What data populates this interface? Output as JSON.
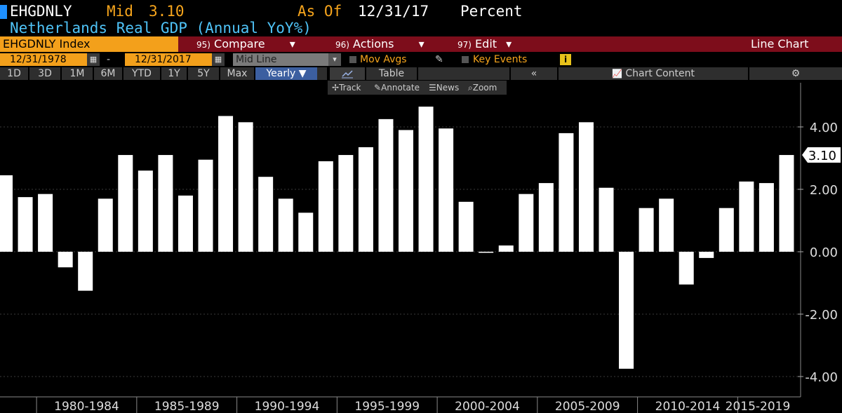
{
  "header": {
    "ticker": "EHGDNLY",
    "mid_label": "Mid",
    "mid_value": "3.10",
    "asof_label": "As Of",
    "asof_value": "12/31/17",
    "unit": "Percent",
    "description": "Netherlands Real GDP (Annual YoY%)"
  },
  "menu": {
    "index": "EHGDNLY Index",
    "compare_num": "95)",
    "compare": "Compare",
    "actions_num": "96)",
    "actions": "Actions",
    "edit_num": "97)",
    "edit": "Edit",
    "chart_type": "Line Chart"
  },
  "dates": {
    "start": "12/31/1978",
    "end": "12/31/2017",
    "mode": "Mid Line",
    "mov_avgs": "Mov Avgs",
    "key_events": "Key Events"
  },
  "periods": [
    "1D",
    "3D",
    "1M",
    "6M",
    "YTD",
    "1Y",
    "5Y",
    "Max"
  ],
  "frequency": "Yearly",
  "view": {
    "table": "Table",
    "chart_content": "Chart Content"
  },
  "tools": {
    "track": "Track",
    "annotate": "Annotate",
    "news": "News",
    "zoom": "Zoom"
  },
  "colors": {
    "bars": "#ffffff",
    "accent": "#f3a01b",
    "menubar": "#7d0d1b",
    "title": "#4fc3f7"
  },
  "chart_data": {
    "type": "bar",
    "title": "Netherlands Real GDP (Annual YoY%)",
    "x": [
      1978,
      1979,
      1980,
      1981,
      1982,
      1983,
      1984,
      1985,
      1986,
      1987,
      1988,
      1989,
      1990,
      1991,
      1992,
      1993,
      1994,
      1995,
      1996,
      1997,
      1998,
      1999,
      2000,
      2001,
      2002,
      2003,
      2004,
      2005,
      2006,
      2007,
      2008,
      2009,
      2010,
      2011,
      2012,
      2013,
      2014,
      2015,
      2016,
      2017
    ],
    "values": [
      2.45,
      1.75,
      1.85,
      -0.5,
      -1.25,
      1.7,
      3.1,
      2.6,
      3.1,
      1.8,
      2.95,
      4.35,
      4.15,
      2.4,
      1.7,
      1.25,
      2.9,
      3.1,
      3.35,
      4.25,
      3.9,
      4.65,
      3.95,
      1.6,
      0.0,
      0.2,
      1.85,
      2.2,
      3.8,
      4.15,
      2.05,
      -3.75,
      1.4,
      1.7,
      -1.05,
      -0.2,
      1.4,
      2.25,
      2.2,
      3.1
    ],
    "last_value_label": "3.10",
    "y_ticks": [
      "4.00",
      "2.00",
      "0.00",
      "-2.00",
      "-4.00"
    ],
    "y_tick_values": [
      4,
      2,
      0,
      -2,
      -4
    ],
    "ylim": [
      -4.4,
      5.4
    ],
    "x_ticks": [
      "1980-1984",
      "1985-1989",
      "1990-1994",
      "1995-1999",
      "2000-2004",
      "2005-2009",
      "2010-2014",
      "2015-2019"
    ],
    "grid": true
  }
}
